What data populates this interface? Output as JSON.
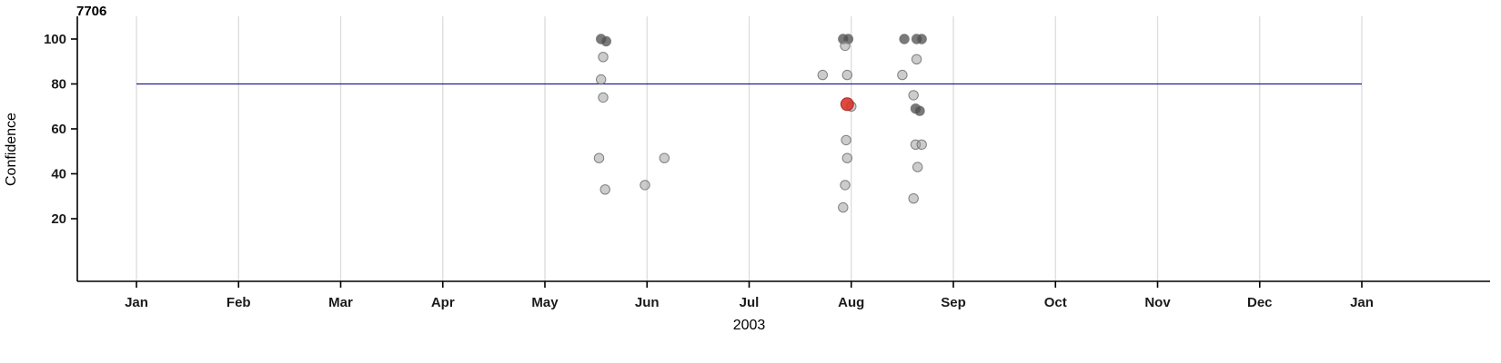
{
  "chart_data": {
    "type": "scatter",
    "title": "7706",
    "xlabel": "2003",
    "ylabel": "Confidence",
    "x_axis": {
      "tick_labels": [
        "Jan",
        "Feb",
        "Mar",
        "Apr",
        "May",
        "Jun",
        "Jul",
        "Aug",
        "Sep",
        "Oct",
        "Nov",
        "Dec",
        "Jan"
      ],
      "unit": "month of 2003, fractional (0 = Jan 1, 12 = next Jan 1)"
    },
    "y_axis": {
      "ticks": [
        20,
        40,
        60,
        80,
        100
      ],
      "range": [
        0,
        108
      ]
    },
    "grid": true,
    "legend": "none",
    "reference_line": {
      "y": 80,
      "color": "#202090"
    },
    "colors": {
      "point": "#999999",
      "point_dark": "#4d4d4d",
      "point_stroke": "#6e6e6e",
      "highlight": "#d93025",
      "highlight_stroke": "#a61b10",
      "grid": "#dcdcdc",
      "axis": "#000000",
      "tick_text": "#1a1a1a"
    },
    "points": [
      {
        "month": 4.55,
        "confidence": 100,
        "shade": "dark"
      },
      {
        "month": 4.6,
        "confidence": 99,
        "shade": "dark"
      },
      {
        "month": 4.57,
        "confidence": 92
      },
      {
        "month": 4.55,
        "confidence": 82
      },
      {
        "month": 4.57,
        "confidence": 74
      },
      {
        "month": 4.53,
        "confidence": 47
      },
      {
        "month": 4.59,
        "confidence": 33
      },
      {
        "month": 4.98,
        "confidence": 35
      },
      {
        "month": 5.17,
        "confidence": 47
      },
      {
        "month": 6.72,
        "confidence": 84
      },
      {
        "month": 6.92,
        "confidence": 100,
        "shade": "dark"
      },
      {
        "month": 6.97,
        "confidence": 100,
        "shade": "dark"
      },
      {
        "month": 6.94,
        "confidence": 97
      },
      {
        "month": 6.96,
        "confidence": 84
      },
      {
        "month": 7.0,
        "confidence": 70
      },
      {
        "month": 6.96,
        "confidence": 71,
        "highlight": true
      },
      {
        "month": 6.95,
        "confidence": 55
      },
      {
        "month": 6.96,
        "confidence": 47
      },
      {
        "month": 6.94,
        "confidence": 35
      },
      {
        "month": 6.92,
        "confidence": 25
      },
      {
        "month": 7.52,
        "confidence": 100,
        "shade": "dark"
      },
      {
        "month": 7.64,
        "confidence": 100,
        "shade": "dark"
      },
      {
        "month": 7.69,
        "confidence": 100,
        "shade": "dark"
      },
      {
        "month": 7.5,
        "confidence": 84
      },
      {
        "month": 7.64,
        "confidence": 91
      },
      {
        "month": 7.61,
        "confidence": 75
      },
      {
        "month": 7.63,
        "confidence": 69,
        "shade": "dark"
      },
      {
        "month": 7.67,
        "confidence": 68,
        "shade": "dark"
      },
      {
        "month": 7.63,
        "confidence": 53
      },
      {
        "month": 7.69,
        "confidence": 53
      },
      {
        "month": 7.65,
        "confidence": 43
      },
      {
        "month": 7.61,
        "confidence": 29
      }
    ]
  }
}
